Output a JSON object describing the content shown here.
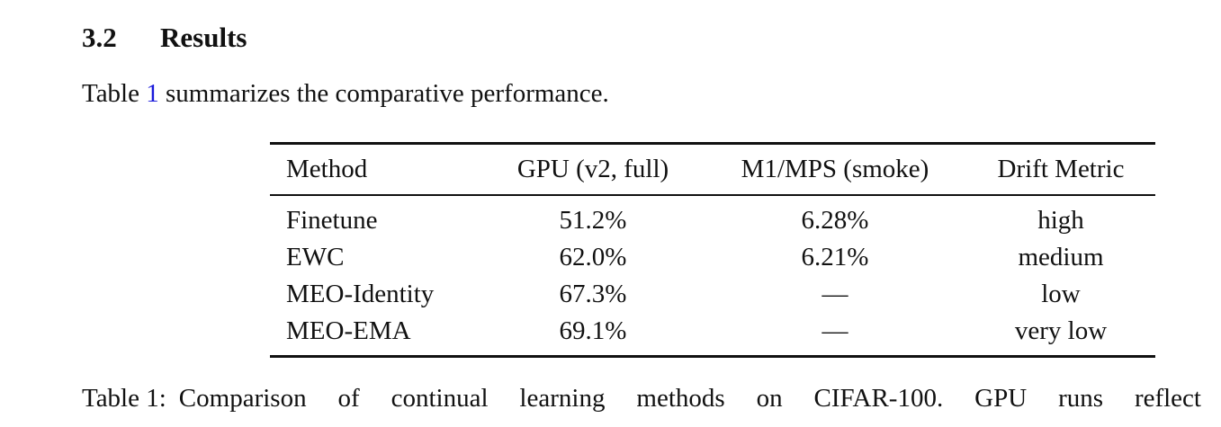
{
  "header": {
    "number": "3.2",
    "title": "Results"
  },
  "paragraph": {
    "before": "Table ",
    "ref": "1",
    "after": " summarizes the comparative performance."
  },
  "table": {
    "columns": [
      "Method",
      "GPU (v2, full)",
      "M1/MPS (smoke)",
      "Drift Metric"
    ],
    "rows": [
      [
        "Finetune",
        "51.2%",
        "6.28%",
        "high"
      ],
      [
        "EWC",
        "62.0%",
        "6.21%",
        "medium"
      ],
      [
        "MEO-Identity",
        "67.3%",
        "—",
        "low"
      ],
      [
        "MEO-EMA",
        "69.1%",
        "—",
        "very low"
      ]
    ]
  },
  "caption": {
    "label": "Table 1:",
    "text": "Comparison of continual learning methods on CIFAR-100.  GPU runs reflect"
  }
}
